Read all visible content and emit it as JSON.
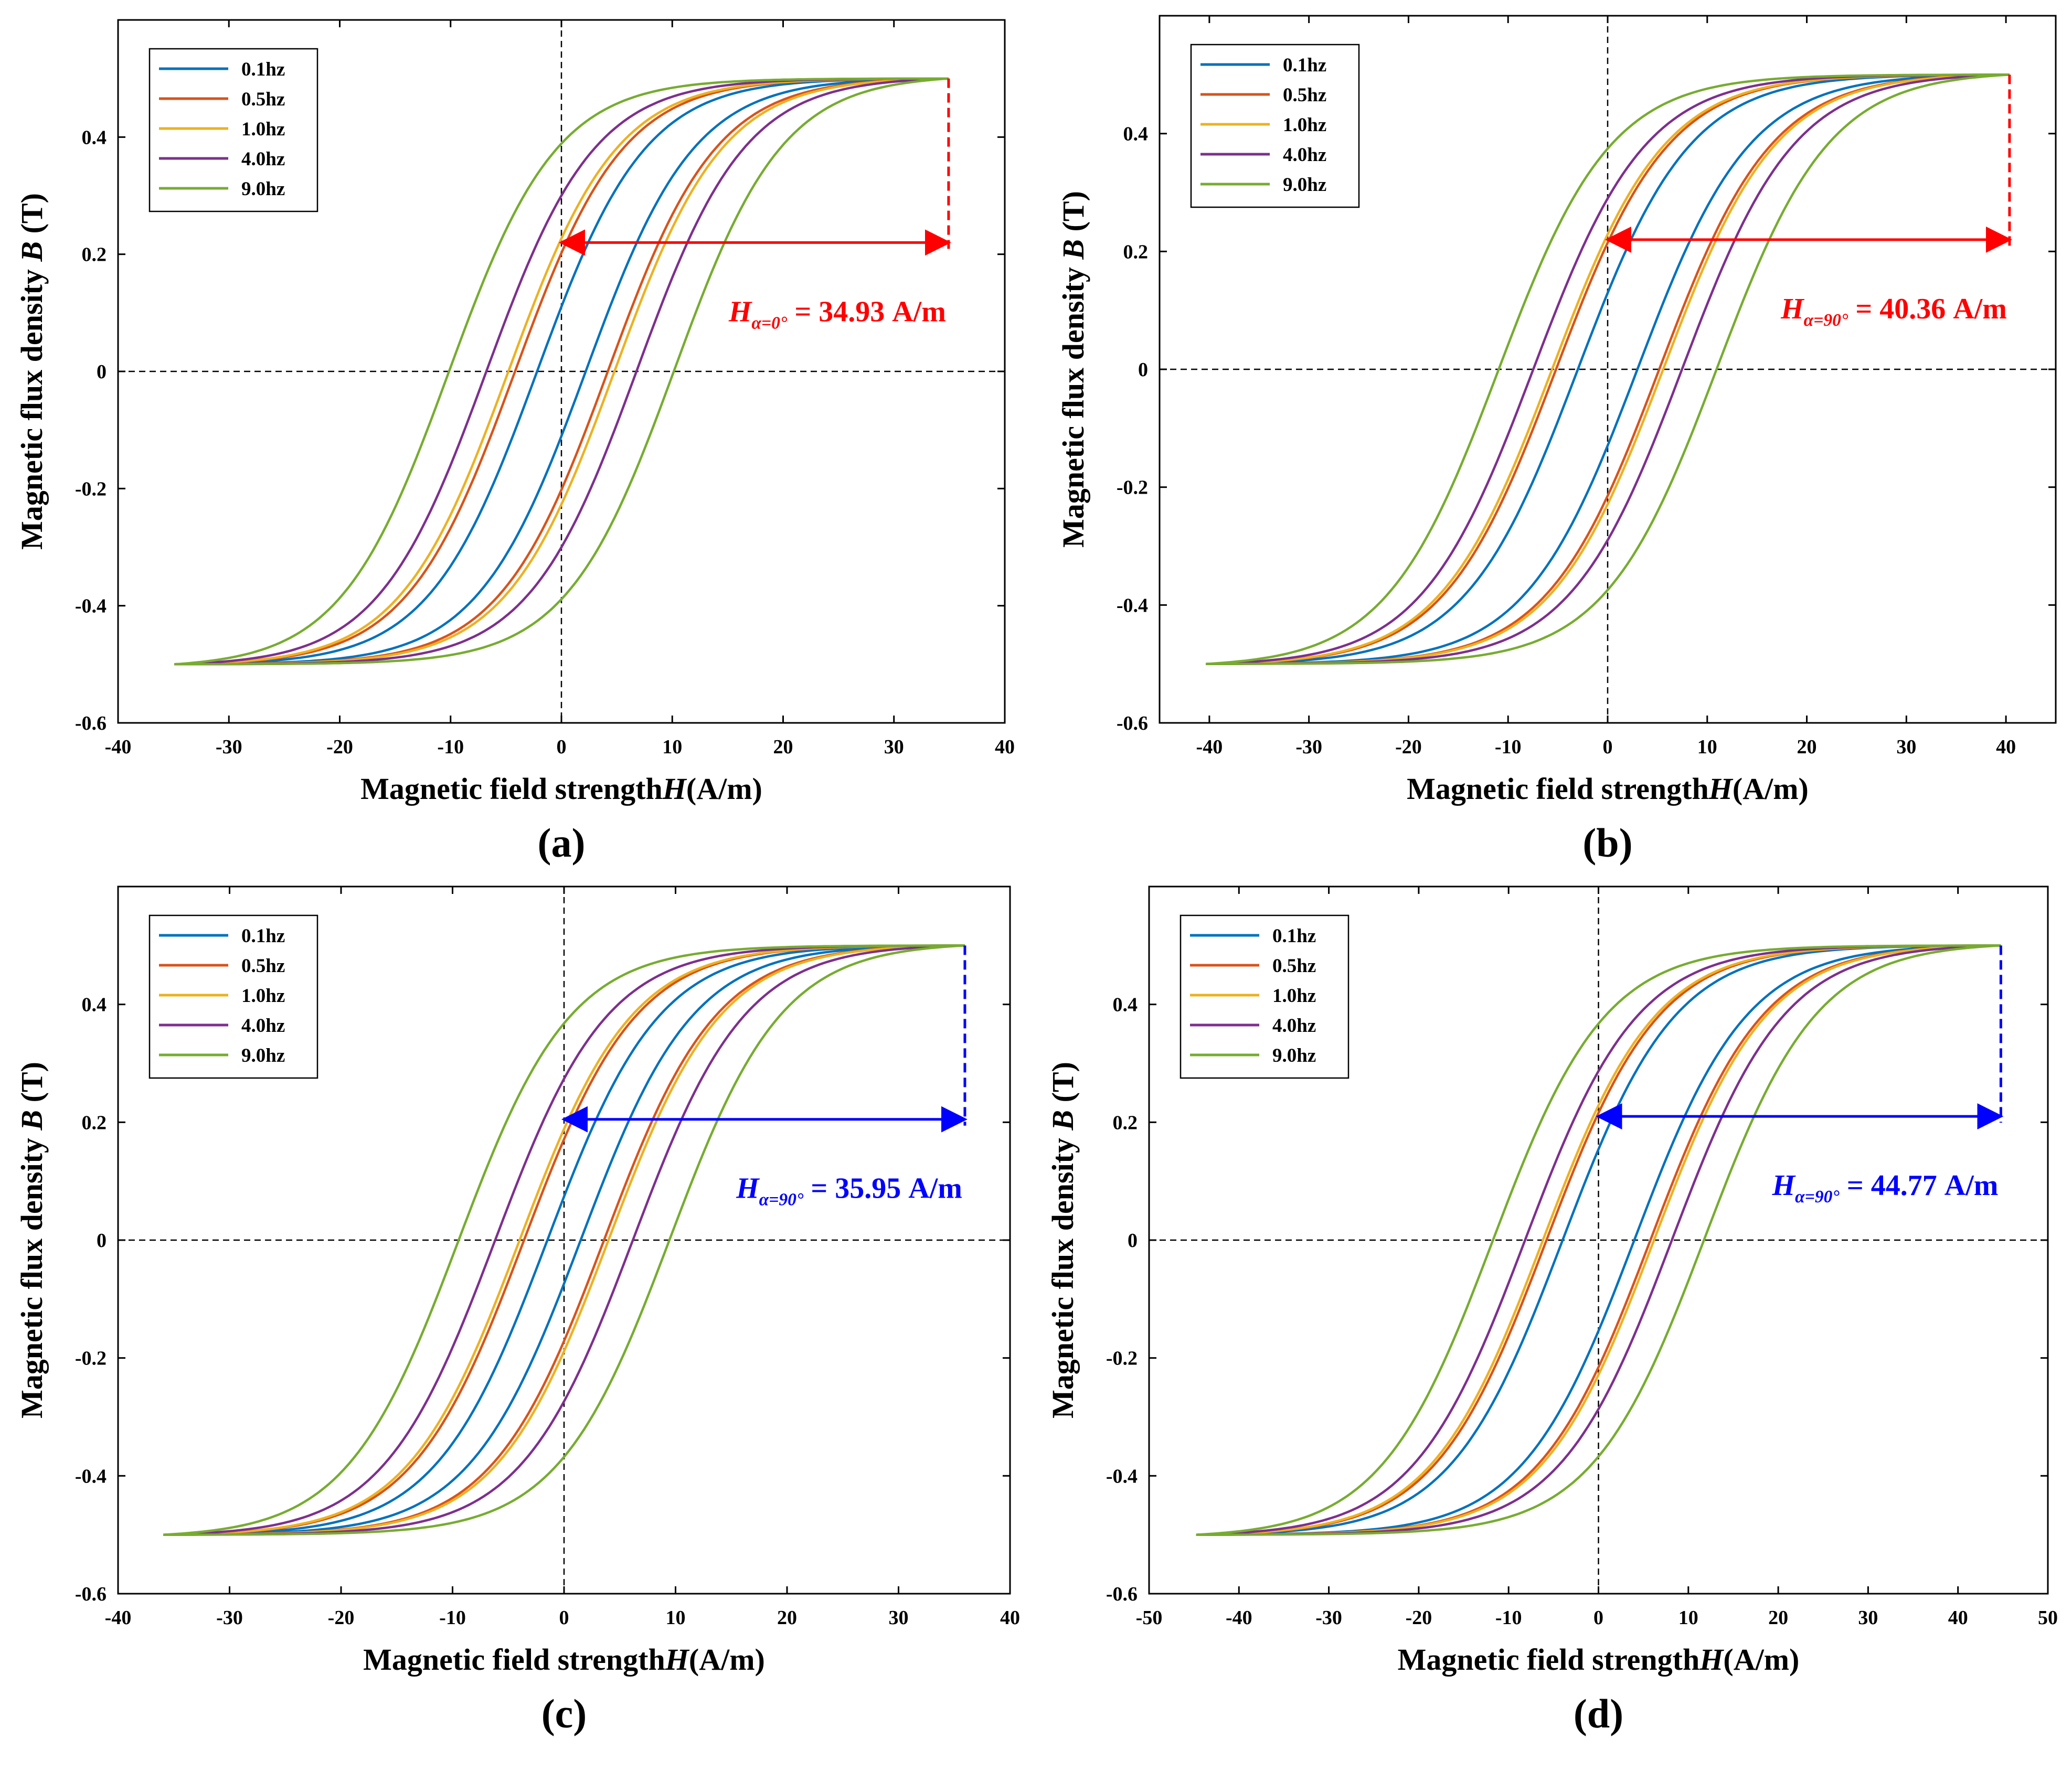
{
  "legend_colors": [
    "#0072BD",
    "#D95319",
    "#EDB120",
    "#7E2F8E",
    "#77AC30"
  ],
  "chart_data": [
    {
      "type": "line",
      "panel_label": "(a)",
      "xlabel_text": "Magnetic field strength",
      "xlabel_var": "H",
      "xlabel_unit": "(A/m)",
      "ylabel_text": "Magnetic flux density",
      "ylabel_var": "B",
      "ylabel_unit": "(T)",
      "xlim": [
        -40,
        40
      ],
      "ylim": [
        -0.6,
        0.6
      ],
      "xticks": [
        -40,
        -30,
        -20,
        -10,
        0,
        10,
        20,
        30,
        40
      ],
      "yticks": [
        -0.6,
        -0.4,
        -0.2,
        0,
        0.2,
        0.4
      ],
      "hmax": 34.93,
      "bmax": 0.5,
      "legend_position": "top-left",
      "series": [
        {
          "name": "0.1hz",
          "coercivity": 2.2,
          "color": "#0072BD"
        },
        {
          "name": "0.5hz",
          "coercivity": 4.2,
          "color": "#D95319"
        },
        {
          "name": "1.0hz",
          "coercivity": 4.8,
          "color": "#EDB120"
        },
        {
          "name": "4.0hz",
          "coercivity": 6.8,
          "color": "#7E2F8E"
        },
        {
          "name": "9.0hz",
          "coercivity": 10.2,
          "color": "#77AC30"
        }
      ],
      "annotation": {
        "sub": "α=0°",
        "value_text": "= 34.93 A/m",
        "color": "#FF0000",
        "arrow_y": 0.22,
        "arrow_x_start": 0,
        "arrow_x_end": 34.93
      }
    },
    {
      "type": "line",
      "panel_label": "(b)",
      "xlabel_text": "Magnetic field strength",
      "xlabel_var": "H",
      "xlabel_unit": "(A/m)",
      "ylabel_text": "Magnetic flux density",
      "ylabel_var": "B",
      "ylabel_unit": "(T)",
      "xlim": [
        -45,
        45
      ],
      "ylim": [
        -0.6,
        0.6
      ],
      "xticks": [
        -40,
        -30,
        -20,
        -10,
        0,
        10,
        20,
        30,
        40
      ],
      "yticks": [
        -0.6,
        -0.4,
        -0.2,
        0,
        0.2,
        0.4
      ],
      "hmax": 40.36,
      "bmax": 0.5,
      "legend_position": "top-left",
      "series": [
        {
          "name": "0.1hz",
          "coercivity": 3.0,
          "color": "#0072BD"
        },
        {
          "name": "0.5hz",
          "coercivity": 5.2,
          "color": "#D95319"
        },
        {
          "name": "1.0hz",
          "coercivity": 5.6,
          "color": "#EDB120"
        },
        {
          "name": "4.0hz",
          "coercivity": 7.5,
          "color": "#7E2F8E"
        },
        {
          "name": "9.0hz",
          "coercivity": 11.0,
          "color": "#77AC30"
        }
      ],
      "annotation": {
        "sub": "α=90°",
        "value_text": "= 40.36 A/m",
        "color": "#FF0000",
        "arrow_y": 0.22,
        "arrow_x_start": 0,
        "arrow_x_end": 40.36
      }
    },
    {
      "type": "line",
      "panel_label": "(c)",
      "xlabel_text": "Magnetic field strength",
      "xlabel_var": "H",
      "xlabel_unit": "(A/m)",
      "ylabel_text": "Magnetic flux density",
      "ylabel_var": "B",
      "ylabel_unit": "(T)",
      "xlim": [
        -40,
        40
      ],
      "ylim": [
        -0.6,
        0.6
      ],
      "xticks": [
        -40,
        -30,
        -20,
        -10,
        0,
        10,
        20,
        30,
        40
      ],
      "yticks": [
        -0.6,
        -0.4,
        -0.2,
        0,
        0.2,
        0.4
      ],
      "hmax": 35.95,
      "bmax": 0.5,
      "legend_position": "top-left",
      "series": [
        {
          "name": "0.1hz",
          "coercivity": 1.5,
          "color": "#0072BD"
        },
        {
          "name": "0.5hz",
          "coercivity": 3.6,
          "color": "#D95319"
        },
        {
          "name": "1.0hz",
          "coercivity": 4.0,
          "color": "#EDB120"
        },
        {
          "name": "4.0hz",
          "coercivity": 6.2,
          "color": "#7E2F8E"
        },
        {
          "name": "9.0hz",
          "coercivity": 9.5,
          "color": "#77AC30"
        }
      ],
      "annotation": {
        "sub": "α=90°",
        "value_text": "= 35.95 A/m",
        "color": "#0000FF",
        "arrow_y": 0.205,
        "arrow_x_start": 0,
        "arrow_x_end": 35.95
      }
    },
    {
      "type": "line",
      "panel_label": "(d)",
      "xlabel_text": "Magnetic field strength",
      "xlabel_var": "H",
      "xlabel_unit": "(A/m)",
      "ylabel_text": "Magnetic flux density",
      "ylabel_var": "B",
      "ylabel_unit": "(T)",
      "xlim": [
        -50,
        50
      ],
      "ylim": [
        -0.6,
        0.6
      ],
      "xticks": [
        -50,
        -40,
        -30,
        -20,
        -10,
        0,
        10,
        20,
        30,
        40,
        50
      ],
      "yticks": [
        -0.6,
        -0.4,
        -0.2,
        0,
        0.2,
        0.4
      ],
      "hmax": 44.77,
      "bmax": 0.5,
      "legend_position": "top-left",
      "series": [
        {
          "name": "0.1hz",
          "coercivity": 4.0,
          "color": "#0072BD"
        },
        {
          "name": "0.5hz",
          "coercivity": 5.8,
          "color": "#D95319"
        },
        {
          "name": "1.0hz",
          "coercivity": 6.2,
          "color": "#EDB120"
        },
        {
          "name": "4.0hz",
          "coercivity": 8.2,
          "color": "#7E2F8E"
        },
        {
          "name": "9.0hz",
          "coercivity": 11.8,
          "color": "#77AC30"
        }
      ],
      "annotation": {
        "sub": "α=90°",
        "value_text": "= 44.77 A/m",
        "color": "#0000FF",
        "arrow_y": 0.21,
        "arrow_x_start": 0,
        "arrow_x_end": 44.77
      }
    }
  ]
}
